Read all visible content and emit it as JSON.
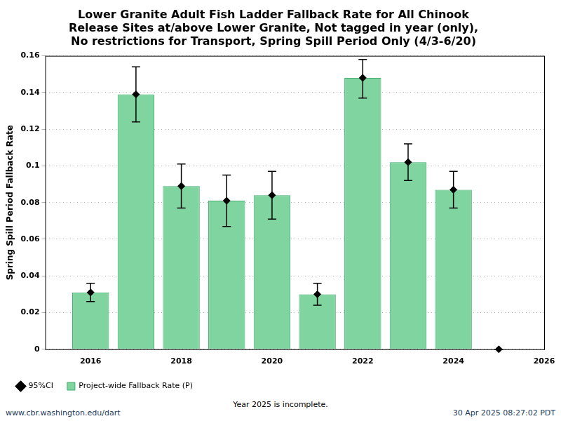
{
  "chart_data": {
    "type": "bar",
    "title": "Lower Granite Adult Fish Ladder Fallback Rate for All Chinook\nRelease Sites at/above Lower Granite, Not tagged in year (only),\nNo restrictions for Transport, Spring Spill Period Only (4/3-6/20)",
    "y_label": "Spring Spill Period Fallback Rate",
    "x": [
      2016,
      2017,
      2018,
      2019,
      2020,
      2021,
      2022,
      2023,
      2024,
      2025
    ],
    "series": [
      {
        "name": "Project-wide Fallback Rate (P)",
        "type": "bar",
        "color": "#80d4a0",
        "values": [
          0.031,
          0.139,
          0.089,
          0.081,
          0.084,
          0.03,
          0.148,
          0.102,
          0.087,
          0
        ]
      },
      {
        "name": "95%CI",
        "type": "errorbar",
        "color": "#000000",
        "marker": "diamond",
        "values": [
          0.031,
          0.139,
          0.089,
          0.081,
          0.084,
          0.03,
          0.148,
          0.102,
          0.087,
          0
        ],
        "ci_lower": [
          0.026,
          0.124,
          0.077,
          0.067,
          0.071,
          0.024,
          0.137,
          0.092,
          0.077,
          0
        ],
        "ci_upper": [
          0.036,
          0.154,
          0.101,
          0.095,
          0.097,
          0.036,
          0.158,
          0.112,
          0.097,
          0
        ]
      }
    ],
    "xlim": [
      2015,
      2026
    ],
    "xticks": [
      2016,
      2018,
      2020,
      2022,
      2024,
      2026
    ],
    "ylim": [
      0,
      0.16
    ],
    "yticks": [
      0,
      0.02,
      0.04,
      0.06,
      0.08,
      0.1,
      0.12,
      0.14,
      0.16
    ],
    "grid": true,
    "legend": "bottom left",
    "footnote": "Year 2025 is incomplete.",
    "source": "www.cbr.washington.edu/dart",
    "timestamp": "30 Apr 2025 08:27:02 PDT"
  }
}
